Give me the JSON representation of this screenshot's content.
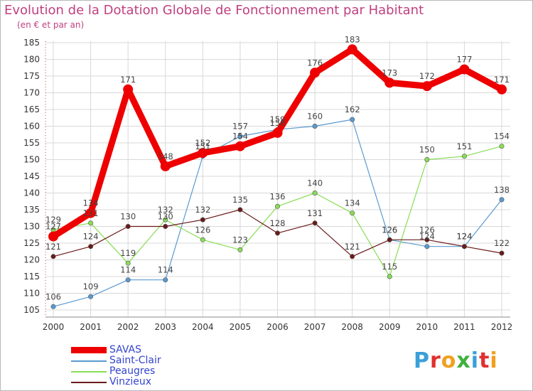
{
  "header": {
    "title": "Evolution de la Dotation Globale de Fonctionnement par Habitant",
    "subtitle": "(en € et par an)"
  },
  "logo": {
    "text": "Proxiti",
    "letter_colors": [
      "#3aa0d8",
      "#e03030",
      "#f0a020",
      "#40b040",
      "#3aa0d8",
      "#e03030",
      "#f0a020"
    ]
  },
  "chart_data": {
    "type": "line",
    "title": "Evolution de la Dotation Globale de Fonctionnement par Habitant",
    "subtitle": "(en € et par an)",
    "xlabel": "",
    "ylabel": "",
    "x": [
      2000,
      2001,
      2002,
      2003,
      2004,
      2005,
      2006,
      2007,
      2008,
      2009,
      2010,
      2011,
      2012
    ],
    "x_tick_labels": [
      "2000",
      "2001",
      "2002",
      "2003",
      "2004",
      "2005",
      "2006",
      "2007",
      "2008",
      "2009",
      "2010",
      "2011",
      "2012"
    ],
    "ylim": [
      105,
      185
    ],
    "y_ticks": [
      105,
      110,
      115,
      120,
      125,
      130,
      135,
      140,
      145,
      150,
      155,
      160,
      165,
      170,
      175,
      180,
      185
    ],
    "grid": true,
    "legend_position": "bottom-left",
    "series": [
      {
        "name": "SAVAS",
        "color": "#ee0000",
        "emphasis": true,
        "values": [
          127,
          134,
          171,
          148,
          152,
          154,
          158,
          176,
          183,
          173,
          172,
          177,
          171
        ]
      },
      {
        "name": "Saint-Clair",
        "color": "#5a9ad0",
        "emphasis": false,
        "values": [
          106,
          109,
          114,
          114,
          151,
          157,
          159,
          160,
          162,
          126,
          124,
          124,
          138
        ]
      },
      {
        "name": "Peaugres",
        "color": "#88dd55",
        "emphasis": false,
        "values": [
          129,
          131,
          119,
          132,
          126,
          123,
          136,
          140,
          134,
          115,
          150,
          151,
          154
        ]
      },
      {
        "name": "Vinzieux",
        "color": "#6a1a1a",
        "emphasis": false,
        "values": [
          121,
          124,
          130,
          130,
          132,
          135,
          128,
          131,
          121,
          126,
          126,
          124,
          122
        ]
      }
    ]
  }
}
